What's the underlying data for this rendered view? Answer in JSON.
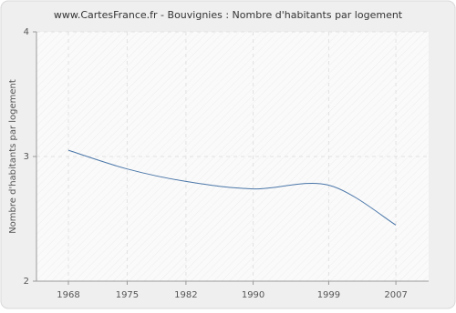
{
  "chart_data": {
    "type": "line",
    "title": "www.CartesFrance.fr - Bouvignies : Nombre d'habitants par logement",
    "y_label": "Nombre d'habitants par logement",
    "x": [
      1968,
      1975,
      1982,
      1990,
      1999,
      2007
    ],
    "series": [
      {
        "name": "Bouvignies",
        "color": "#4a76a8",
        "values": [
          3.05,
          2.9,
          2.8,
          2.74,
          2.77,
          2.45
        ]
      }
    ],
    "xlim": [
      1964.2,
      2010.9
    ],
    "xticks": [
      1968,
      1975,
      1982,
      1990,
      1999,
      2007
    ],
    "ylim": [
      2,
      4
    ],
    "yticks": [
      2,
      3,
      4
    ],
    "grid": true
  }
}
